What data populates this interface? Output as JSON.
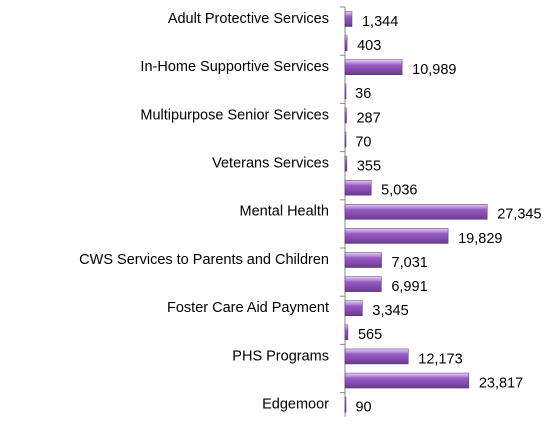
{
  "chart_data": {
    "type": "barh",
    "categories": [
      "Adult Protective Services",
      null,
      "In-Home Supportive Services",
      null,
      "Multipurpose Senior Services",
      null,
      "Veterans Services",
      null,
      "Mental Health",
      null,
      "CWS Services to Parents and Children",
      null,
      "Foster Care Aid Payment",
      null,
      "PHS Programs",
      null,
      "Edgemoor"
    ],
    "values": [
      1344,
      403,
      10989,
      36,
      287,
      70,
      355,
      5036,
      27345,
      19829,
      7031,
      6991,
      3345,
      565,
      12173,
      23817,
      90
    ],
    "value_labels": [
      "1,344",
      "403",
      "10,989",
      "36",
      "287",
      "70",
      "355",
      "5,036",
      "27,345",
      "19,829",
      "7,031",
      "6,991",
      "3,345",
      "565",
      "12,173",
      "23,817",
      "90"
    ],
    "color": "#9a5cc6",
    "xlim": [
      0,
      30000
    ]
  }
}
